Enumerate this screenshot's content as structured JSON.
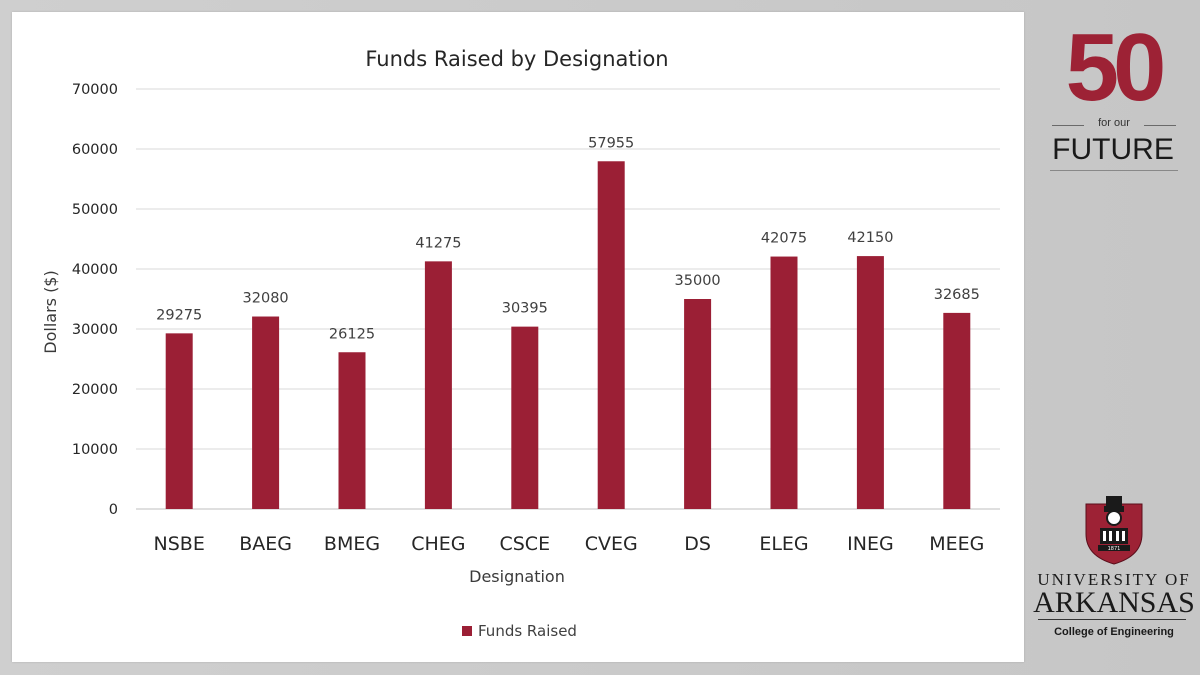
{
  "chart_data": {
    "type": "bar",
    "title": "Funds Raised by Designation",
    "xlabel": "Designation",
    "ylabel": "Dollars ($)",
    "ylim": [
      0,
      70000
    ],
    "yticks": [
      0,
      10000,
      20000,
      30000,
      40000,
      50000,
      60000,
      70000
    ],
    "ytick_labels": [
      "0",
      "10000",
      "20000",
      "30000",
      "40000",
      "50000",
      "60000",
      "70000"
    ],
    "grid": true,
    "legend_position": "bottom",
    "categories": [
      "NSBE",
      "BAEG",
      "BMEG",
      "CHEG",
      "CSCE",
      "CVEG",
      "DS",
      "ELEG",
      "INEG",
      "MEEG"
    ],
    "series": [
      {
        "name": "Funds Raised",
        "color": "#9b1f35",
        "values": [
          29275,
          32080,
          26125,
          41275,
          30395,
          57955,
          35000,
          42075,
          42150,
          32685
        ],
        "value_labels": [
          "29275",
          "32080",
          "26125",
          "41275",
          "30395",
          "57955",
          "35000",
          "42075",
          "42150",
          "32685"
        ]
      }
    ]
  },
  "branding": {
    "number": "50",
    "tagline": "for our",
    "word": "FUTURE",
    "accent_color": "#9d2235",
    "seal_icon": "university-seal-icon",
    "seal_year": "1871",
    "university_line1": "UNIVERSITY OF",
    "university_line2": "ARKANSAS",
    "college": "College of Engineering"
  }
}
